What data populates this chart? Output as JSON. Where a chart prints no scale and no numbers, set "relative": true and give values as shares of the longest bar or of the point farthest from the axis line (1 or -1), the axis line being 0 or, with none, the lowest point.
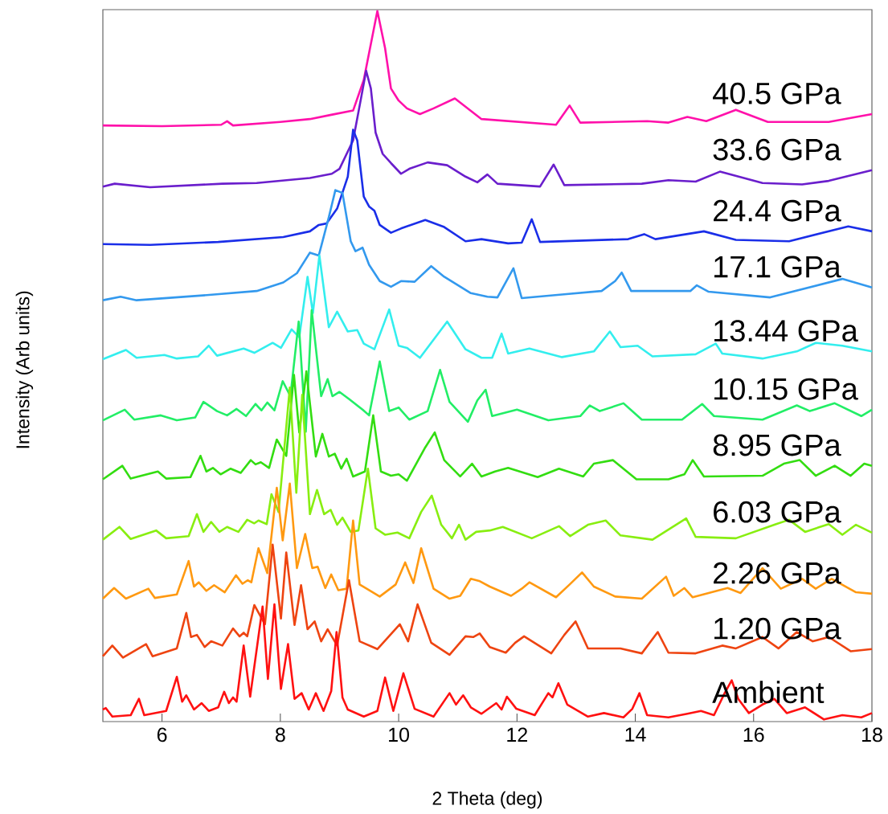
{
  "chart_data": {
    "type": "line",
    "relative": true,
    "xlabel": "2 Theta (deg)",
    "ylabel": "Intensity (Arb units)",
    "xlim": [
      5,
      18
    ],
    "xticks": [
      6,
      8,
      10,
      12,
      14,
      16,
      18
    ],
    "marker": "none",
    "line_style": "solid",
    "series": [
      {
        "name": "40.5 GPa",
        "color": "#ff11aa",
        "x": [
          5.0,
          6.0,
          7.0,
          7.1,
          7.2,
          8.0,
          8.5,
          8.86,
          9.23,
          9.41,
          9.64,
          9.77,
          9.87,
          10.0,
          10.14,
          10.36,
          10.59,
          10.95,
          11.4,
          12.66,
          12.89,
          13.07,
          14.2,
          14.56,
          14.88,
          15.2,
          15.7,
          16.24,
          17.27,
          18.0
        ],
        "values": [
          0.839,
          0.838,
          0.84,
          0.845,
          0.839,
          0.844,
          0.848,
          0.854,
          0.86,
          0.903,
          1.0,
          0.948,
          0.891,
          0.874,
          0.863,
          0.855,
          0.863,
          0.877,
          0.848,
          0.84,
          0.867,
          0.843,
          0.845,
          0.843,
          0.851,
          0.845,
          0.861,
          0.844,
          0.844,
          0.855
        ]
      },
      {
        "name": "33.6 GPa",
        "color": "#6a1ecc",
        "x": [
          5.0,
          5.2,
          5.8,
          7.02,
          7.6,
          8.5,
          8.87,
          9.0,
          9.23,
          9.37,
          9.45,
          9.53,
          9.61,
          9.73,
          9.87,
          10.04,
          10.18,
          10.49,
          10.82,
          11.13,
          11.33,
          11.5,
          11.67,
          12.39,
          12.62,
          12.8,
          14.11,
          14.56,
          15.02,
          15.43,
          16.15,
          16.82,
          17.27,
          18.0
        ],
        "values": [
          0.753,
          0.757,
          0.752,
          0.757,
          0.758,
          0.765,
          0.771,
          0.778,
          0.818,
          0.88,
          0.916,
          0.891,
          0.829,
          0.799,
          0.786,
          0.771,
          0.778,
          0.787,
          0.783,
          0.767,
          0.759,
          0.77,
          0.757,
          0.753,
          0.784,
          0.755,
          0.757,
          0.762,
          0.76,
          0.774,
          0.758,
          0.756,
          0.761,
          0.776
        ]
      },
      {
        "name": "24.4 GPa",
        "color": "#1a2ee8",
        "x": [
          5.0,
          5.8,
          6.95,
          8.05,
          8.5,
          8.65,
          8.78,
          8.96,
          9.14,
          9.23,
          9.3,
          9.41,
          9.5,
          9.59,
          9.68,
          9.87,
          10.04,
          10.45,
          10.77,
          11.13,
          11.4,
          11.85,
          12.08,
          12.25,
          12.39,
          13.88,
          14.15,
          14.34,
          15.16,
          15.7,
          16.6,
          17.6,
          18.0
        ],
        "values": [
          0.672,
          0.671,
          0.675,
          0.682,
          0.69,
          0.699,
          0.701,
          0.722,
          0.767,
          0.833,
          0.818,
          0.739,
          0.725,
          0.719,
          0.699,
          0.688,
          0.694,
          0.706,
          0.696,
          0.676,
          0.679,
          0.673,
          0.674,
          0.707,
          0.675,
          0.679,
          0.686,
          0.679,
          0.69,
          0.678,
          0.676,
          0.697,
          0.69
        ]
      },
      {
        "name": "17.1 GPa",
        "color": "#3399ee",
        "x": [
          5.0,
          5.3,
          5.57,
          6.88,
          7.6,
          8.05,
          8.28,
          8.5,
          8.65,
          8.82,
          8.93,
          9.05,
          9.19,
          9.27,
          9.39,
          9.5,
          9.68,
          9.87,
          10.04,
          10.27,
          10.55,
          10.77,
          11.22,
          11.5,
          11.67,
          11.94,
          12.08,
          12.76,
          13.43,
          13.66,
          13.77,
          13.93,
          14.93,
          15.04,
          15.24,
          16.28,
          17.5,
          18.0
        ],
        "values": [
          0.593,
          0.598,
          0.593,
          0.601,
          0.606,
          0.618,
          0.631,
          0.66,
          0.656,
          0.71,
          0.748,
          0.744,
          0.676,
          0.662,
          0.667,
          0.643,
          0.62,
          0.612,
          0.62,
          0.619,
          0.641,
          0.626,
          0.603,
          0.598,
          0.597,
          0.638,
          0.596,
          0.601,
          0.606,
          0.62,
          0.632,
          0.606,
          0.606,
          0.614,
          0.605,
          0.597,
          0.623,
          0.611
        ]
      },
      {
        "name": "13.44 GPa",
        "color": "#33eeee",
        "x": [
          5.0,
          5.39,
          5.57,
          6.04,
          6.25,
          6.61,
          6.79,
          6.93,
          7.38,
          7.56,
          7.87,
          8.01,
          8.19,
          8.32,
          8.46,
          8.55,
          8.66,
          8.82,
          8.96,
          9.14,
          9.3,
          9.41,
          9.59,
          9.84,
          10.0,
          10.14,
          10.36,
          10.82,
          11.13,
          11.4,
          11.58,
          11.74,
          11.85,
          12.21,
          12.76,
          13.3,
          13.57,
          13.75,
          14.04,
          14.29,
          15.02,
          15.36,
          15.47,
          16.15,
          16.73,
          17.05,
          17.5,
          18.0
        ],
        "values": [
          0.51,
          0.523,
          0.512,
          0.516,
          0.511,
          0.514,
          0.529,
          0.515,
          0.525,
          0.519,
          0.533,
          0.526,
          0.552,
          0.541,
          0.626,
          0.575,
          0.656,
          0.555,
          0.577,
          0.549,
          0.551,
          0.532,
          0.524,
          0.58,
          0.529,
          0.526,
          0.512,
          0.563,
          0.524,
          0.512,
          0.512,
          0.546,
          0.518,
          0.525,
          0.513,
          0.521,
          0.549,
          0.527,
          0.529,
          0.514,
          0.517,
          0.532,
          0.518,
          0.511,
          0.521,
          0.533,
          0.529,
          0.521
        ]
      },
      {
        "name": "10.15 GPa",
        "color": "#22ee66",
        "x": [
          5.0,
          5.37,
          5.53,
          5.98,
          6.25,
          6.56,
          6.7,
          6.93,
          7.1,
          7.26,
          7.42,
          7.58,
          7.68,
          7.78,
          7.9,
          8.04,
          8.17,
          8.31,
          8.43,
          8.53,
          8.69,
          8.8,
          8.88,
          9.0,
          9.16,
          9.39,
          9.5,
          9.68,
          9.84,
          10.0,
          10.18,
          10.49,
          10.7,
          10.86,
          11.17,
          11.33,
          11.47,
          11.58,
          12.0,
          12.53,
          13.07,
          13.23,
          13.4,
          13.8,
          14.11,
          14.79,
          15.13,
          15.33,
          16.15,
          16.73,
          16.95,
          17.37,
          17.82,
          18.0
        ],
        "values": [
          0.424,
          0.439,
          0.425,
          0.431,
          0.424,
          0.428,
          0.45,
          0.437,
          0.431,
          0.44,
          0.43,
          0.447,
          0.438,
          0.449,
          0.438,
          0.479,
          0.458,
          0.563,
          0.408,
          0.579,
          0.458,
          0.482,
          0.458,
          0.464,
          0.454,
          0.439,
          0.431,
          0.507,
          0.437,
          0.442,
          0.425,
          0.437,
          0.495,
          0.45,
          0.422,
          0.452,
          0.467,
          0.43,
          0.439,
          0.424,
          0.43,
          0.445,
          0.437,
          0.448,
          0.425,
          0.425,
          0.447,
          0.43,
          0.425,
          0.445,
          0.437,
          0.448,
          0.43,
          0.439
        ]
      },
      {
        "name": "8.95 GPa",
        "color": "#33dd11",
        "x": [
          5.0,
          5.33,
          5.47,
          5.93,
          6.07,
          6.48,
          6.65,
          6.75,
          6.86,
          6.99,
          7.16,
          7.33,
          7.5,
          7.58,
          7.67,
          7.81,
          7.94,
          8.1,
          8.23,
          8.32,
          8.44,
          8.6,
          8.71,
          8.82,
          8.92,
          9.03,
          9.12,
          9.23,
          9.43,
          9.57,
          9.7,
          9.87,
          10.0,
          10.14,
          10.45,
          10.61,
          10.77,
          11.04,
          11.24,
          11.4,
          11.63,
          11.85,
          12.35,
          12.71,
          13.12,
          13.3,
          13.62,
          14.02,
          14.56,
          14.83,
          14.97,
          15.16,
          16.15,
          16.51,
          16.78,
          17.05,
          17.37,
          17.64,
          17.87,
          18.0
        ],
        "values": [
          0.341,
          0.36,
          0.342,
          0.352,
          0.342,
          0.344,
          0.374,
          0.352,
          0.357,
          0.348,
          0.356,
          0.35,
          0.368,
          0.362,
          0.365,
          0.357,
          0.397,
          0.374,
          0.488,
          0.407,
          0.493,
          0.373,
          0.405,
          0.373,
          0.377,
          0.356,
          0.37,
          0.345,
          0.352,
          0.431,
          0.352,
          0.346,
          0.348,
          0.339,
          0.386,
          0.407,
          0.368,
          0.345,
          0.363,
          0.345,
          0.352,
          0.357,
          0.344,
          0.356,
          0.345,
          0.363,
          0.368,
          0.341,
          0.341,
          0.348,
          0.368,
          0.345,
          0.346,
          0.363,
          0.368,
          0.346,
          0.36,
          0.346,
          0.363,
          0.36
        ]
      },
      {
        "name": "6.03 GPa",
        "color": "#88ee11",
        "x": [
          5.0,
          5.28,
          5.47,
          5.9,
          6.07,
          6.45,
          6.59,
          6.7,
          6.83,
          6.97,
          7.1,
          7.29,
          7.44,
          7.56,
          7.63,
          7.77,
          7.85,
          7.97,
          8.16,
          8.27,
          8.37,
          8.5,
          8.62,
          8.74,
          8.85,
          8.96,
          9.05,
          9.19,
          9.32,
          9.48,
          9.61,
          9.77,
          9.98,
          10.18,
          10.38,
          10.56,
          10.72,
          10.9,
          11.02,
          11.13,
          11.31,
          11.54,
          11.76,
          12.25,
          12.71,
          12.9,
          13.2,
          13.5,
          13.75,
          14.29,
          14.86,
          15.02,
          15.7,
          16.38,
          16.6,
          16.87,
          17.27,
          17.5,
          17.73,
          18.0
        ],
        "values": [
          0.256,
          0.274,
          0.257,
          0.269,
          0.258,
          0.261,
          0.292,
          0.267,
          0.281,
          0.267,
          0.274,
          0.267,
          0.284,
          0.279,
          0.283,
          0.278,
          0.32,
          0.295,
          0.47,
          0.322,
          0.46,
          0.292,
          0.326,
          0.292,
          0.298,
          0.277,
          0.287,
          0.267,
          0.269,
          0.356,
          0.272,
          0.263,
          0.266,
          0.258,
          0.295,
          0.318,
          0.277,
          0.258,
          0.277,
          0.256,
          0.267,
          0.269,
          0.274,
          0.258,
          0.275,
          0.261,
          0.277,
          0.283,
          0.262,
          0.256,
          0.286,
          0.26,
          0.258,
          0.278,
          0.284,
          0.267,
          0.278,
          0.263,
          0.277,
          0.266
        ]
      },
      {
        "name": "2.26 GPa",
        "color": "#ff9911",
        "x": [
          5.0,
          5.19,
          5.39,
          5.77,
          5.88,
          6.25,
          6.45,
          6.54,
          6.62,
          6.75,
          6.88,
          7.06,
          7.25,
          7.36,
          7.45,
          7.51,
          7.63,
          7.78,
          7.94,
          8.04,
          8.16,
          8.28,
          8.42,
          8.54,
          8.63,
          8.76,
          8.86,
          8.98,
          9.12,
          9.23,
          9.34,
          9.46,
          9.68,
          9.95,
          10.11,
          10.25,
          10.38,
          10.59,
          10.86,
          11.04,
          11.22,
          11.36,
          11.54,
          11.9,
          12.08,
          12.21,
          12.66,
          12.89,
          13.1,
          13.3,
          13.66,
          14.11,
          14.52,
          14.65,
          14.83,
          14.97,
          15.56,
          15.78,
          16.15,
          16.46,
          16.82,
          17.05,
          17.32,
          17.73,
          18.0
        ],
        "values": [
          0.173,
          0.188,
          0.173,
          0.187,
          0.174,
          0.179,
          0.226,
          0.19,
          0.196,
          0.184,
          0.192,
          0.182,
          0.206,
          0.194,
          0.199,
          0.196,
          0.244,
          0.209,
          0.329,
          0.255,
          0.335,
          0.216,
          0.264,
          0.216,
          0.218,
          0.188,
          0.207,
          0.185,
          0.187,
          0.283,
          0.193,
          0.187,
          0.176,
          0.193,
          0.224,
          0.195,
          0.244,
          0.187,
          0.173,
          0.177,
          0.201,
          0.198,
          0.19,
          0.177,
          0.187,
          0.196,
          0.175,
          0.193,
          0.21,
          0.19,
          0.176,
          0.173,
          0.204,
          0.177,
          0.188,
          0.175,
          0.188,
          0.181,
          0.216,
          0.187,
          0.201,
          0.187,
          0.201,
          0.182,
          0.18
        ]
      },
      {
        "name": "1.20 GPa",
        "color": "#ee4411",
        "x": [
          5.0,
          5.16,
          5.34,
          5.73,
          5.84,
          6.25,
          6.41,
          6.49,
          6.59,
          6.72,
          6.83,
          7.02,
          7.2,
          7.31,
          7.38,
          7.44,
          7.56,
          7.74,
          7.87,
          8.01,
          8.1,
          8.24,
          8.35,
          8.46,
          8.58,
          8.69,
          8.8,
          8.96,
          9.16,
          9.34,
          9.64,
          10.02,
          10.16,
          10.32,
          10.55,
          10.86,
          11.13,
          11.26,
          11.37,
          11.54,
          11.81,
          11.97,
          12.12,
          12.58,
          12.8,
          12.99,
          13.2,
          13.75,
          14.11,
          14.38,
          14.56,
          15.02,
          15.47,
          15.7,
          16.15,
          16.42,
          16.73,
          17.0,
          17.27,
          17.64,
          18.0
        ],
        "values": [
          0.092,
          0.107,
          0.09,
          0.109,
          0.092,
          0.103,
          0.153,
          0.119,
          0.122,
          0.105,
          0.113,
          0.107,
          0.131,
          0.12,
          0.125,
          0.12,
          0.164,
          0.137,
          0.249,
          0.145,
          0.238,
          0.136,
          0.192,
          0.13,
          0.141,
          0.113,
          0.13,
          0.107,
          0.199,
          0.113,
          0.102,
          0.137,
          0.113,
          0.165,
          0.111,
          0.094,
          0.12,
          0.119,
          0.124,
          0.105,
          0.097,
          0.111,
          0.12,
          0.096,
          0.122,
          0.141,
          0.103,
          0.103,
          0.096,
          0.126,
          0.097,
          0.096,
          0.107,
          0.103,
          0.119,
          0.103,
          0.126,
          0.113,
          0.119,
          0.099,
          0.102
        ]
      },
      {
        "name": "Ambient",
        "color": "#ff1111",
        "x": [
          5.0,
          5.05,
          5.16,
          5.47,
          5.61,
          5.7,
          6.07,
          6.25,
          6.34,
          6.41,
          6.54,
          6.67,
          6.79,
          6.95,
          7.05,
          7.13,
          7.2,
          7.26,
          7.38,
          7.49,
          7.7,
          7.79,
          7.9,
          8.01,
          8.13,
          8.24,
          8.36,
          8.48,
          8.6,
          8.73,
          8.86,
          8.95,
          9.05,
          9.14,
          9.41,
          9.64,
          9.77,
          9.91,
          10.08,
          10.27,
          10.59,
          10.86,
          10.97,
          11.09,
          11.22,
          11.4,
          11.65,
          11.74,
          11.83,
          11.99,
          12.3,
          12.53,
          12.6,
          12.7,
          12.85,
          13.2,
          13.47,
          13.8,
          13.95,
          14.07,
          14.2,
          14.56,
          14.88,
          15.11,
          15.33,
          15.51,
          15.63,
          15.74,
          15.92,
          16.15,
          16.35,
          16.56,
          16.87,
          17.19,
          17.5,
          17.82,
          18.0
        ],
        "values": [
          0.017,
          0.019,
          0.007,
          0.009,
          0.032,
          0.009,
          0.015,
          0.063,
          0.028,
          0.037,
          0.017,
          0.026,
          0.015,
          0.02,
          0.042,
          0.026,
          0.034,
          0.028,
          0.107,
          0.035,
          0.162,
          0.06,
          0.165,
          0.046,
          0.109,
          0.032,
          0.04,
          0.017,
          0.04,
          0.015,
          0.043,
          0.126,
          0.034,
          0.017,
          0.007,
          0.015,
          0.062,
          0.015,
          0.068,
          0.018,
          0.007,
          0.04,
          0.024,
          0.037,
          0.02,
          0.011,
          0.026,
          0.017,
          0.035,
          0.018,
          0.009,
          0.04,
          0.034,
          0.054,
          0.024,
          0.007,
          0.012,
          0.006,
          0.018,
          0.04,
          0.009,
          0.006,
          0.011,
          0.015,
          0.009,
          0.04,
          0.058,
          0.032,
          0.012,
          0.024,
          0.032,
          0.012,
          0.02,
          0.003,
          0.009,
          0.006,
          0.012
        ]
      }
    ]
  }
}
